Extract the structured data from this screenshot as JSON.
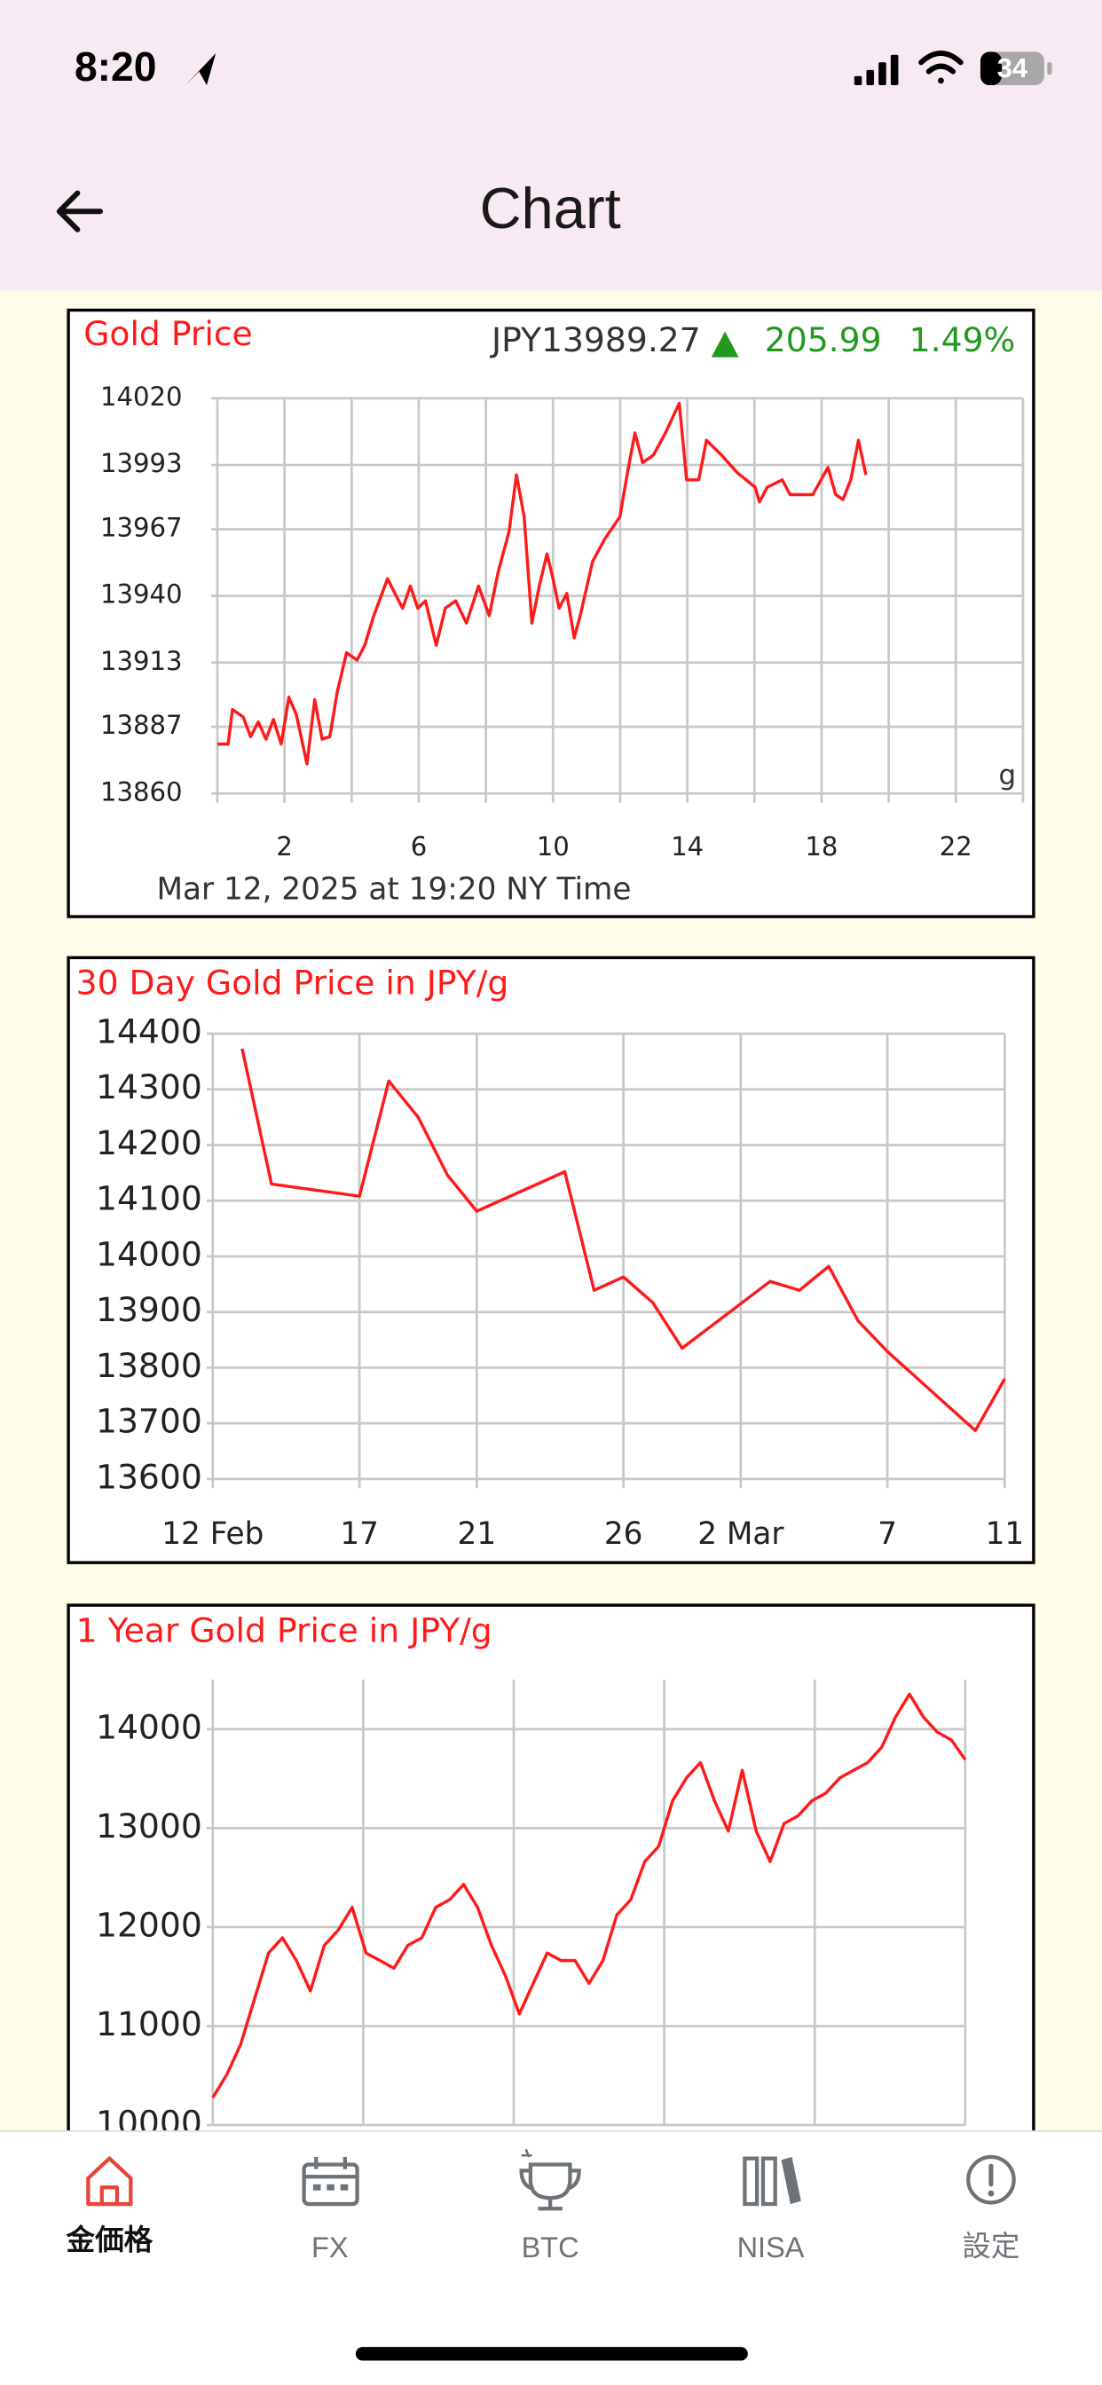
{
  "status_bar": {
    "time": "8:20",
    "battery": "34"
  },
  "header": {
    "title": "Chart"
  },
  "chart_data": [
    {
      "type": "line",
      "title": "Gold Price",
      "price": "JPY13989.27",
      "change": "205.99",
      "change_percent": "1.49%",
      "unit": "g",
      "footnote": "Mar 12, 2025 at 19:20 NY Time",
      "color": "#ff1a1a",
      "change_color": "#1f9a1f",
      "x": [
        0,
        0.32,
        0.45,
        0.77,
        0.99,
        1.22,
        1.45,
        1.67,
        1.9,
        2.13,
        2.35,
        2.67,
        2.9,
        3.12,
        3.35,
        3.57,
        3.85,
        4.16,
        4.39,
        4.66,
        5.07,
        5.29,
        5.52,
        5.75,
        5.97,
        6.2,
        6.52,
        6.79,
        7.1,
        7.42,
        7.78,
        8.1,
        8.37,
        8.69,
        8.91,
        9.14,
        9.37,
        9.59,
        9.82,
        10.0,
        10.18,
        10.41,
        10.63,
        10.81,
        11.18,
        11.54,
        11.99,
        12.22,
        12.44,
        12.67,
        12.99,
        13.35,
        13.76,
        13.98,
        14.34,
        14.57,
        15.02,
        15.48,
        16.02,
        16.15,
        16.38,
        16.83,
        17.06,
        17.74,
        18.19,
        18.42,
        18.64,
        18.87,
        19.1,
        19.32
      ],
      "values": [
        13880,
        13880,
        13894,
        13891,
        13883,
        13889,
        13882,
        13890,
        13880,
        13899,
        13892,
        13872,
        13898,
        13882,
        13883,
        13901,
        13917,
        13914,
        13920,
        13932,
        13947,
        13941,
        13935,
        13944,
        13935,
        13938,
        13920,
        13935,
        13938,
        13929,
        13944,
        13932,
        13950,
        13966,
        13989,
        13972,
        13929,
        13944,
        13957,
        13947,
        13935,
        13941,
        13923,
        13932,
        13954,
        13963,
        13972,
        13990,
        14006,
        13994,
        13997,
        14006,
        14018,
        13987,
        13987,
        14003,
        13997,
        13990,
        13984,
        13978,
        13984,
        13987,
        13981,
        13981,
        13992,
        13981,
        13979,
        13987,
        14003,
        13989
      ],
      "xlim": [
        0,
        24
      ],
      "xticks": [
        2,
        6,
        10,
        14,
        18,
        22
      ],
      "ylim": [
        13860,
        14020
      ],
      "yticks": [
        13860,
        13887,
        13913,
        13940,
        13967,
        13993,
        14020
      ],
      "grid": true
    },
    {
      "type": "line",
      "title": "30 Day Gold Price in JPY/g",
      "color": "#ff1a1a",
      "x": [
        "02-13",
        "02-14",
        "02-17",
        "02-18",
        "02-19",
        "02-20",
        "02-21",
        "02-24",
        "02-25",
        "02-26",
        "02-27",
        "02-28",
        "03-03",
        "03-04",
        "03-05",
        "03-06",
        "03-07",
        "03-10",
        "03-11"
      ],
      "values": [
        14373,
        14130,
        14108,
        14315,
        14250,
        14146,
        14081,
        14152,
        13939,
        13963,
        13917,
        13835,
        13955,
        13939,
        13982,
        13884,
        13829,
        13687,
        13780
      ],
      "xlim": [
        "02-12",
        "03-11"
      ],
      "xticks": [
        {
          "value": "02-12",
          "label": "12 Feb"
        },
        {
          "value": "02-17",
          "label": "17"
        },
        {
          "value": "02-21",
          "label": "21"
        },
        {
          "value": "02-26",
          "label": "26"
        },
        {
          "value": "03-02",
          "label": "2 Mar"
        },
        {
          "value": "03-07",
          "label": "7"
        },
        {
          "value": "03-11",
          "label": "11"
        }
      ],
      "ylim": [
        13600,
        14400
      ],
      "yticks": [
        13600,
        13700,
        13800,
        13900,
        14000,
        14100,
        14200,
        14300,
        14400
      ],
      "grid": true
    },
    {
      "type": "line",
      "title": "1 Year Gold Price in JPY/g",
      "color": "#ff1a1a",
      "values": [
        10277,
        10508,
        10815,
        11277,
        11738,
        11892,
        11662,
        11354,
        11815,
        11969,
        12200,
        11738,
        11662,
        11585,
        11815,
        11892,
        12200,
        12277,
        12431,
        12200,
        11815,
        11508,
        11123,
        11431,
        11738,
        11662,
        11662,
        11431,
        11662,
        12123,
        12277,
        12662,
        12815,
        13277,
        13508,
        13662,
        13277,
        12969,
        13585,
        12969,
        12662,
        13046,
        13123,
        13277,
        13354,
        13508,
        13585,
        13662,
        13815,
        14123,
        14354,
        14123,
        13969,
        13892,
        13692
      ],
      "ylim": [
        10000,
        14500
      ],
      "yticks": [
        10000,
        11000,
        12000,
        13000,
        14000
      ],
      "grid": true
    }
  ],
  "tab_bar": {
    "tabs": [
      "金価格",
      "FX",
      "BTC",
      "NISA",
      "設定"
    ]
  }
}
